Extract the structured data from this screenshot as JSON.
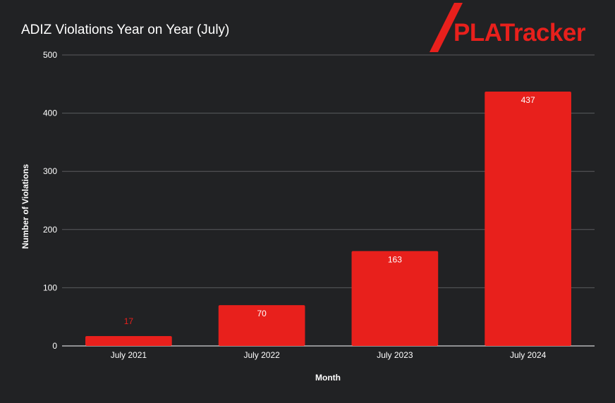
{
  "brand": {
    "logo_text": "PLATracker",
    "accent_color": "#e8201c"
  },
  "chart_data": {
    "type": "bar",
    "title": "ADIZ Violations Year on Year (July)",
    "xlabel": "Month",
    "ylabel": "Number of Violations",
    "categories": [
      "July 2021",
      "July 2022",
      "July 2023",
      "July 2024"
    ],
    "values": [
      17,
      70,
      163,
      437
    ],
    "data_labels": [
      "17",
      "70",
      "163",
      "437"
    ],
    "ylim": [
      0,
      500
    ],
    "yticks": [
      0,
      100,
      200,
      300,
      400,
      500
    ],
    "ytick_labels": [
      "0",
      "100",
      "200",
      "300",
      "400",
      "500"
    ],
    "grid": true,
    "legend": "none",
    "bar_color": "#e8201c",
    "background_color": "#212224",
    "gridline_color": "#5a5b5e",
    "text_color": "#ffffff"
  }
}
